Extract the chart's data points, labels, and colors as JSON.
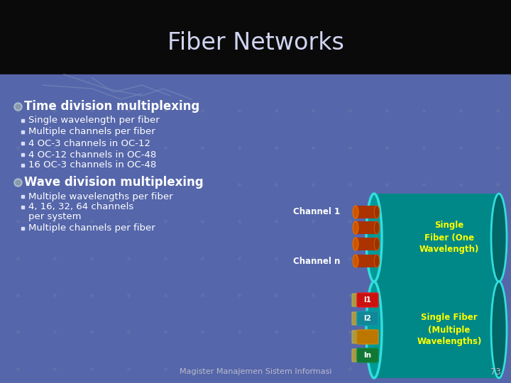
{
  "title": "Fiber Networks",
  "title_color": "#D0D4F0",
  "title_fontsize": 24,
  "bullet1_title": "Time division multiplexing",
  "bullet1_items": [
    "Single wavelength per fiber",
    "Multiple channels per fiber",
    "4 OC-3 channels in OC-12",
    "4 OC-12 channels in OC-48",
    "16 OC-3 channels in OC-48"
  ],
  "bullet2_title": "Wave division multiplexing",
  "bullet2_items": [
    "Multiple wavelengths per fiber",
    "4, 16, 32, 64 channels\nper system",
    "Multiple channels per fiber"
  ],
  "footer": "Magister Manajemen Sistem Informasi",
  "footer_page": "73",
  "fiber1_label_ch1": "Channel 1",
  "fiber1_label_chn": "Channel n",
  "fiber1_box_text": "Single\nFiber (One\nWavelength)",
  "fiber2_box_text": "Single Fiber\n(Multiple\nWavelengths)",
  "teal_body": "#009999",
  "teal_rim": "#00CCDD",
  "teal_dark_end": "#006666",
  "orange_dark": "#8B2200",
  "orange_mid": "#CC4400",
  "orange_light": "#E85500",
  "yellow_text": "#FFFF00",
  "white": "#FFFFFF",
  "bg_main": "#5566AA",
  "bg_title": "#111111"
}
